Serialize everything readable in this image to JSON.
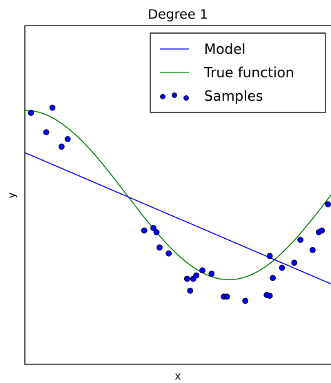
{
  "chart_data": {
    "type": "scatter",
    "title": "Degree 1",
    "xlabel": "x",
    "ylabel": "y",
    "xlim": [
      0,
      1
    ],
    "ylim": [
      -2,
      2
    ],
    "grid": false,
    "ticks": false,
    "legend": {
      "placement": "top-right"
    },
    "series": [
      {
        "name": "Model",
        "kind": "line",
        "color": "#0000ff",
        "x": [
          0,
          1
        ],
        "y": [
          0.5,
          -1.05
        ]
      },
      {
        "name": "True function",
        "kind": "line",
        "color": "#008000",
        "function": "cos(1.5*pi*x)"
      },
      {
        "name": "Samples",
        "kind": "scatter",
        "color": "#0000ff",
        "edgecolor": "#000000",
        "x": [
          0.02,
          0.07,
          0.09,
          0.12,
          0.14,
          0.39,
          0.42,
          0.43,
          0.44,
          0.47,
          0.53,
          0.54,
          0.55,
          0.56,
          0.58,
          0.61,
          0.65,
          0.66,
          0.72,
          0.79,
          0.8,
          0.8,
          0.81,
          0.84,
          0.88,
          0.9,
          0.94,
          0.96,
          0.97,
          0.99
        ],
        "y": [
          0.97,
          0.74,
          1.03,
          0.57,
          0.66,
          -0.42,
          -0.39,
          -0.44,
          -0.62,
          -0.69,
          -0.99,
          -1.13,
          -0.99,
          -0.95,
          -0.89,
          -0.93,
          -1.2,
          -1.2,
          -1.25,
          -1.18,
          -1.19,
          -0.72,
          -0.98,
          -0.86,
          -0.8,
          -0.53,
          -0.65,
          -0.44,
          -0.42,
          -0.11
        ]
      }
    ]
  }
}
